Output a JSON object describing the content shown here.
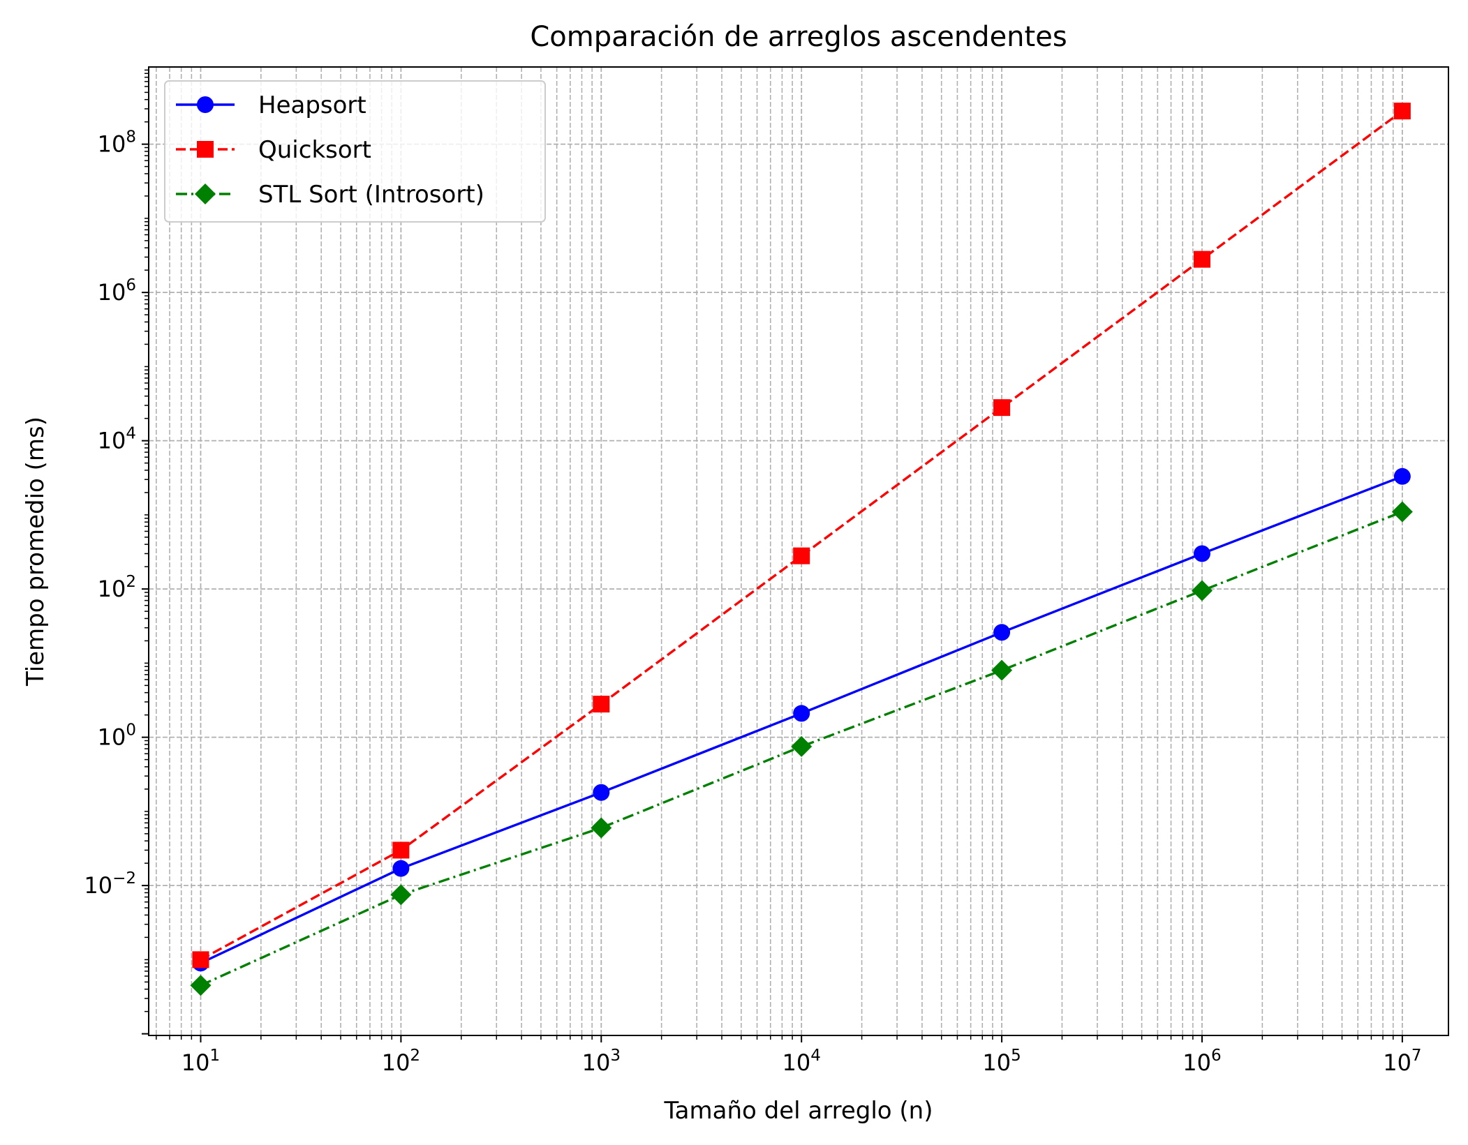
{
  "chart_data": {
    "type": "line",
    "title": "Comparación de arreglos ascendentes",
    "xlabel": "Tamaño del arreglo (n)",
    "ylabel": "Tiempo promedio (ms)",
    "xscale": "log",
    "yscale": "log",
    "xlim": [
      5.5,
      17000000
    ],
    "ylim": [
      9.5e-05,
      1100000000
    ],
    "grid": true,
    "grid_style": "dashed",
    "legend_position": "top-left",
    "x": [
      10,
      100,
      1000,
      10000,
      100000,
      1000000,
      10000000
    ],
    "x_ticks": [
      {
        "base": "10",
        "exp": "1",
        "value": 10
      },
      {
        "base": "10",
        "exp": "2",
        "value": 100
      },
      {
        "base": "10",
        "exp": "3",
        "value": 1000
      },
      {
        "base": "10",
        "exp": "4",
        "value": 10000
      },
      {
        "base": "10",
        "exp": "5",
        "value": 100000
      },
      {
        "base": "10",
        "exp": "6",
        "value": 1000000
      },
      {
        "base": "10",
        "exp": "7",
        "value": 10000000
      }
    ],
    "y_ticks": [
      {
        "base": "10",
        "exp": "−2",
        "value": 0.01
      },
      {
        "base": "10",
        "exp": "0",
        "value": 1
      },
      {
        "base": "10",
        "exp": "2",
        "value": 100
      },
      {
        "base": "10",
        "exp": "4",
        "value": 10000
      },
      {
        "base": "10",
        "exp": "6",
        "value": 1000000
      },
      {
        "base": "10",
        "exp": "8",
        "value": 100000000
      }
    ],
    "series": [
      {
        "name": "Heapsort",
        "color": "#0000ff",
        "linestyle": "solid",
        "marker": "circle",
        "values": [
          0.0009,
          0.017,
          0.18,
          2.1,
          26,
          300,
          3300
        ]
      },
      {
        "name": "Quicksort",
        "color": "#ff0000",
        "linestyle": "dashed",
        "marker": "square",
        "values": [
          0.001,
          0.03,
          2.8,
          280,
          28000,
          2800000,
          280000000
        ]
      },
      {
        "name": "STL Sort (Introsort)",
        "color": "#008000",
        "linestyle": "dashdot",
        "marker": "diamond",
        "values": [
          0.00045,
          0.0075,
          0.06,
          0.75,
          8,
          95,
          1100
        ]
      }
    ]
  }
}
